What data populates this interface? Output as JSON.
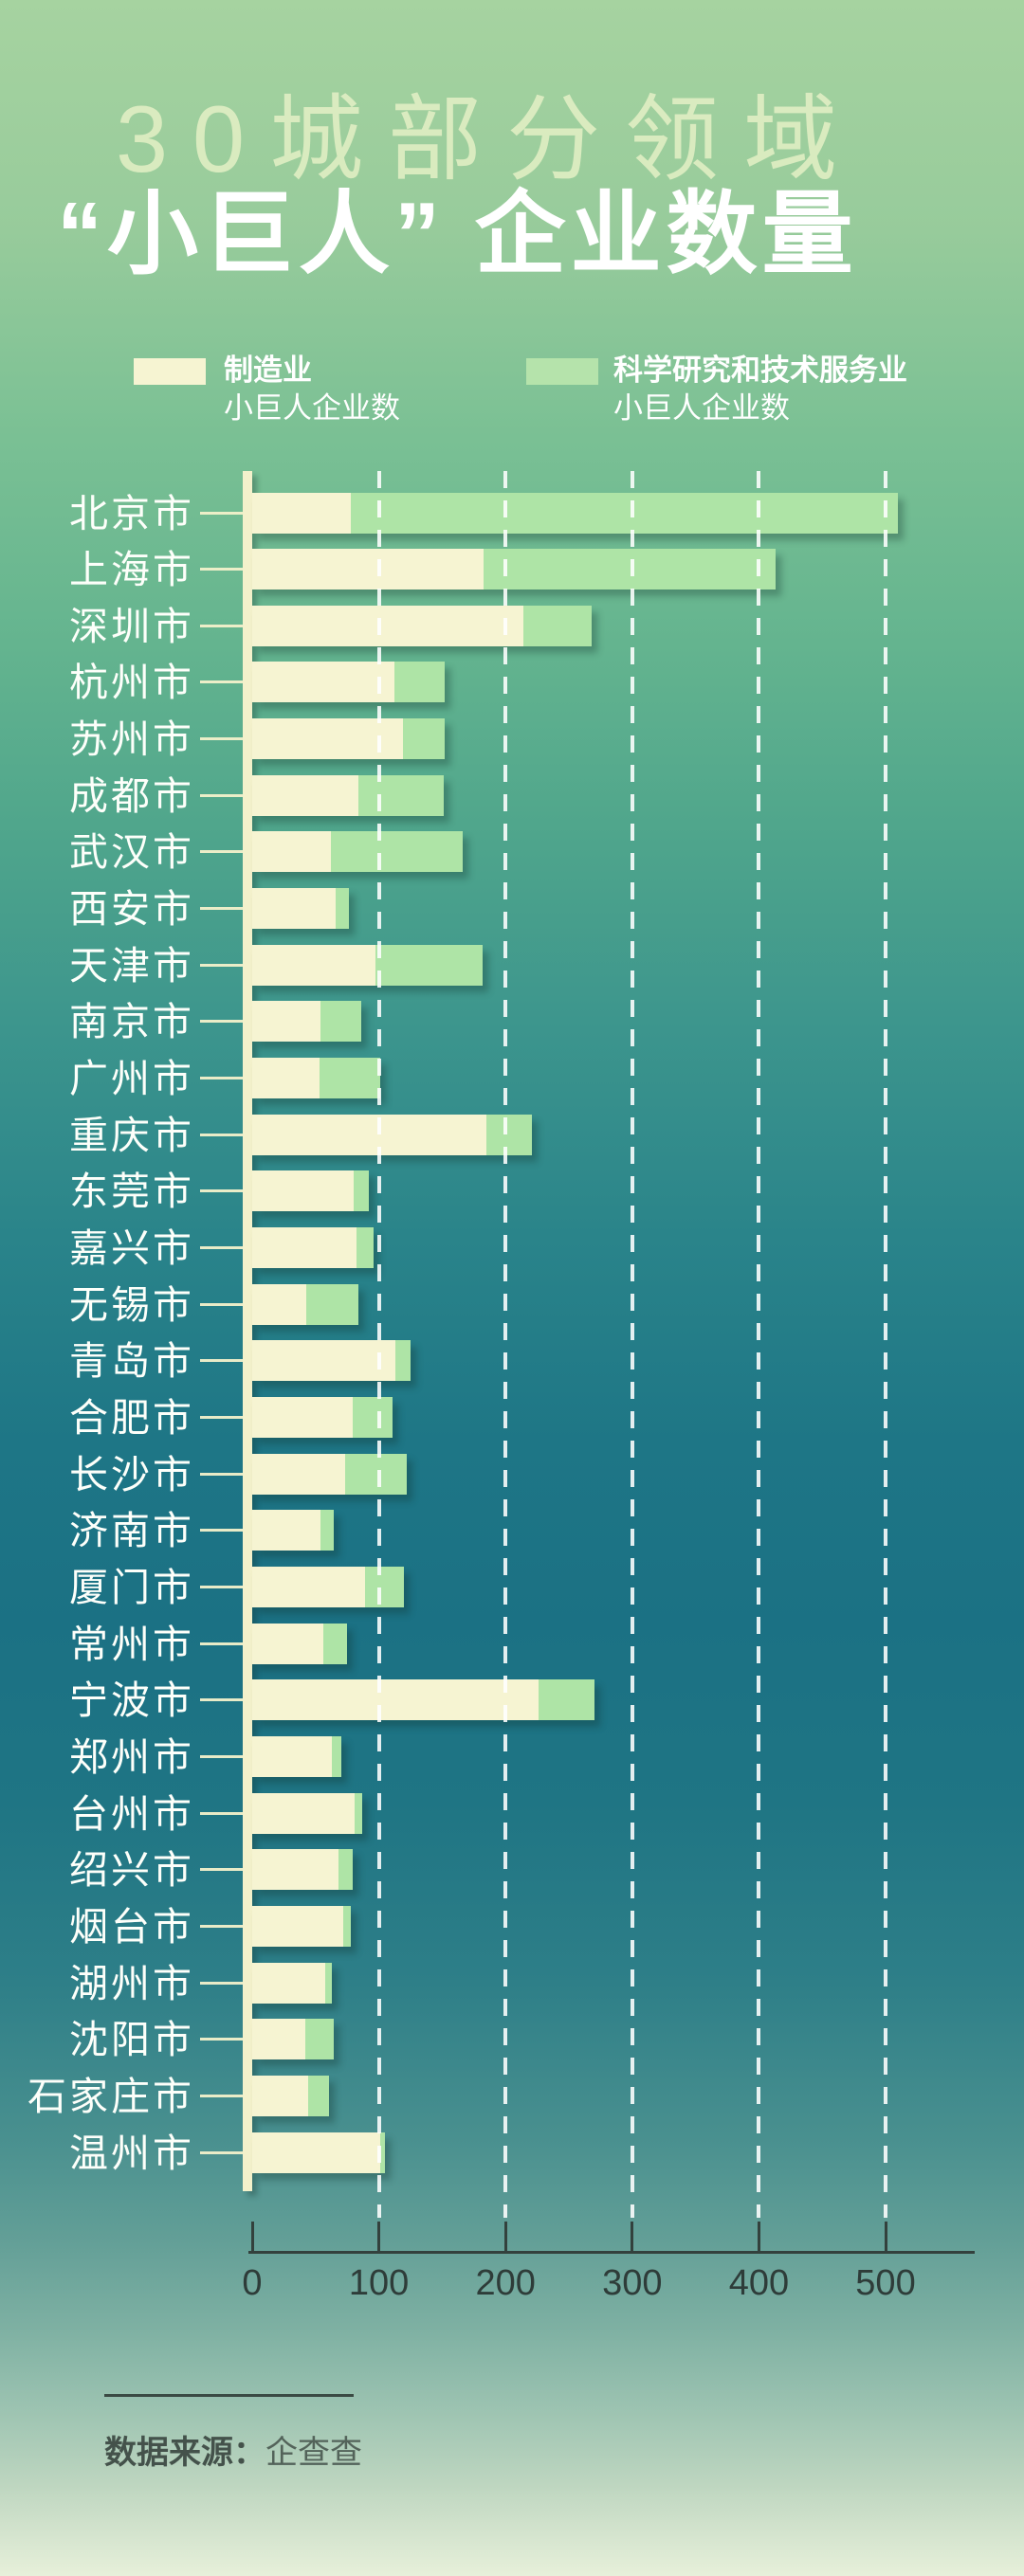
{
  "poster": {
    "title_line1": "30城部分领域",
    "title_line2": "“小巨人” 企业数量",
    "source_label": "数据来源：",
    "source_value": "企查查"
  },
  "legend": {
    "items": [
      {
        "label": "制造业",
        "sublabel": "小巨人企业数",
        "color": "#f6f4d2"
      },
      {
        "label": "科学研究和技术服务业",
        "sublabel": "小巨人企业数",
        "color": "#b5e3ab"
      }
    ]
  },
  "chart_data": {
    "type": "bar",
    "orientation": "horizontal",
    "stacked": true,
    "title": "30城部分领域“小巨人”企业数量",
    "categories": [
      "北京市",
      "上海市",
      "深圳市",
      "杭州市",
      "苏州市",
      "成都市",
      "武汉市",
      "西安市",
      "天津市",
      "南京市",
      "广州市",
      "重庆市",
      "东莞市",
      "嘉兴市",
      "无锡市",
      "青岛市",
      "合肥市",
      "长沙市",
      "济南市",
      "厦门市",
      "常州市",
      "宁波市",
      "郑州市",
      "台州市",
      "绍兴市",
      "烟台市",
      "湖州市",
      "沈阳市",
      "石家庄市",
      "温州市"
    ],
    "series": [
      {
        "name": "制造业小巨人企业数",
        "color": "#f6f4d2",
        "values": [
          78,
          183,
          214,
          112,
          119,
          84,
          62,
          66,
          97,
          54,
          53,
          185,
          80,
          82,
          43,
          113,
          79,
          73,
          54,
          89,
          56,
          226,
          63,
          81,
          68,
          72,
          58,
          42,
          44,
          101
        ]
      },
      {
        "name": "科学研究和技术服务业小巨人企业数",
        "color": "#aee4a6",
        "values": [
          432,
          230,
          54,
          40,
          33,
          67,
          104,
          10,
          85,
          32,
          48,
          36,
          12,
          14,
          41,
          12,
          32,
          49,
          10,
          31,
          19,
          44,
          7,
          6,
          11,
          6,
          5,
          22,
          17,
          4
        ]
      }
    ],
    "x_ticks": [
      0,
      100,
      200,
      300,
      400,
      500
    ],
    "xlim": [
      0,
      570
    ],
    "grid": "vertical-dashed-white",
    "legend_position": "top",
    "source": "企查查"
  }
}
